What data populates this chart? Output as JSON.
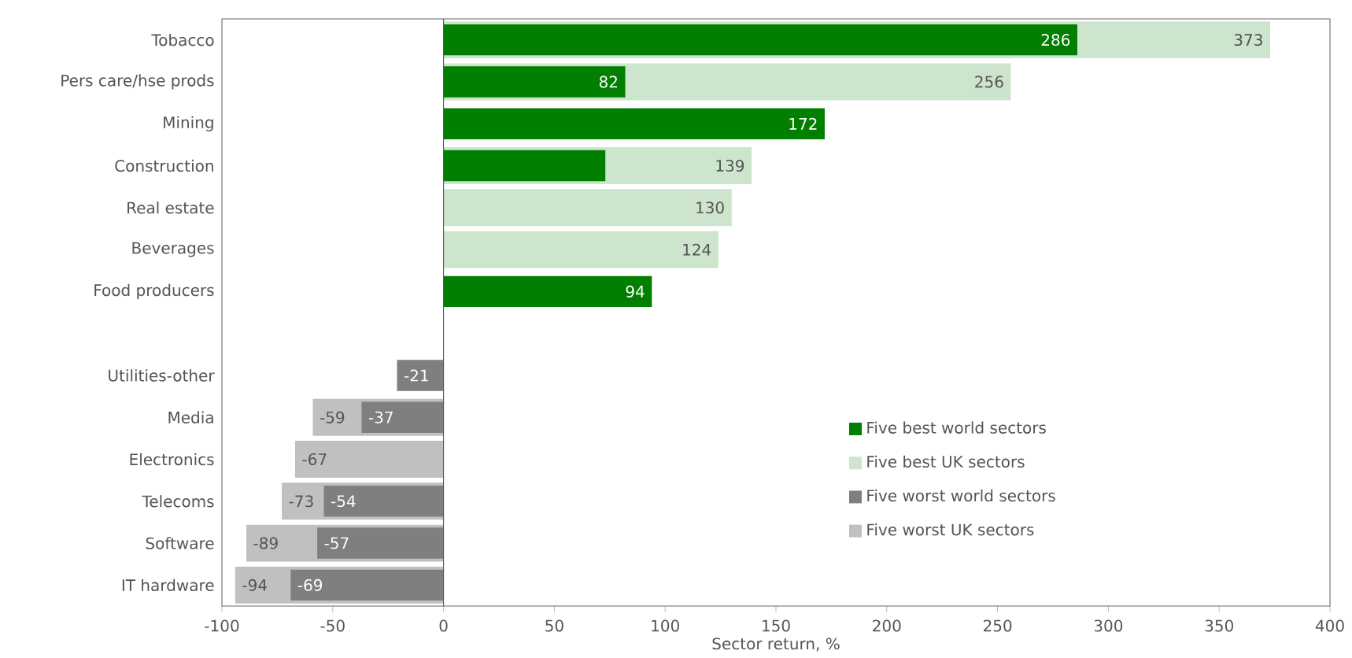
{
  "chart_data": {
    "type": "bar",
    "orientation": "horizontal",
    "xlabel": "Sector return, %",
    "categories": [
      "Tobacco",
      "Pers care/hse prods",
      "Mining",
      "Construction",
      "Real estate",
      "Beverages",
      "Food producers",
      null,
      "Utilities-other",
      "Media",
      "Electronics",
      "Telecoms",
      "Software",
      "IT hardware"
    ],
    "series": [
      {
        "name": "Five best world sectors",
        "color": "#007f00",
        "values": [
          286,
          82,
          172,
          73,
          null,
          null,
          94,
          null,
          null,
          null,
          null,
          null,
          null,
          null
        ],
        "value_labels": [
          "286",
          "82",
          "172",
          null,
          null,
          null,
          "94",
          null,
          null,
          null,
          null,
          null,
          null,
          null
        ]
      },
      {
        "name": "Five best UK sectors",
        "color": "#cce5cc",
        "values": [
          373,
          256,
          null,
          139,
          130,
          124,
          null,
          null,
          null,
          null,
          null,
          null,
          null,
          null
        ],
        "value_labels": [
          "373",
          "256",
          null,
          "139",
          "130",
          "124",
          null,
          null,
          null,
          null,
          null,
          null,
          null,
          null
        ]
      },
      {
        "name": "Five worst world sectors",
        "color": "#7f7f7f",
        "values": [
          null,
          null,
          null,
          null,
          null,
          null,
          null,
          null,
          -21,
          -37,
          null,
          -54,
          -57,
          -69
        ],
        "value_labels": [
          null,
          null,
          null,
          null,
          null,
          null,
          null,
          null,
          "-21",
          "-37",
          null,
          "-54",
          "-57",
          "-69"
        ]
      },
      {
        "name": "Five worst UK sectors",
        "color": "#c0c0c0",
        "values": [
          null,
          null,
          null,
          null,
          null,
          null,
          null,
          null,
          null,
          -59,
          -67,
          -73,
          -89,
          -94
        ],
        "value_labels": [
          null,
          null,
          null,
          null,
          null,
          null,
          null,
          null,
          null,
          "-59",
          "-67",
          "-73",
          "-89",
          "-94"
        ]
      }
    ],
    "xlim": [
      -100,
      400
    ],
    "xticks": [
      -100,
      -50,
      0,
      50,
      100,
      150,
      200,
      250,
      300,
      350,
      400
    ],
    "ref_lines": [
      {
        "axis": "x",
        "value": 0
      }
    ],
    "legend": "bottom right"
  }
}
